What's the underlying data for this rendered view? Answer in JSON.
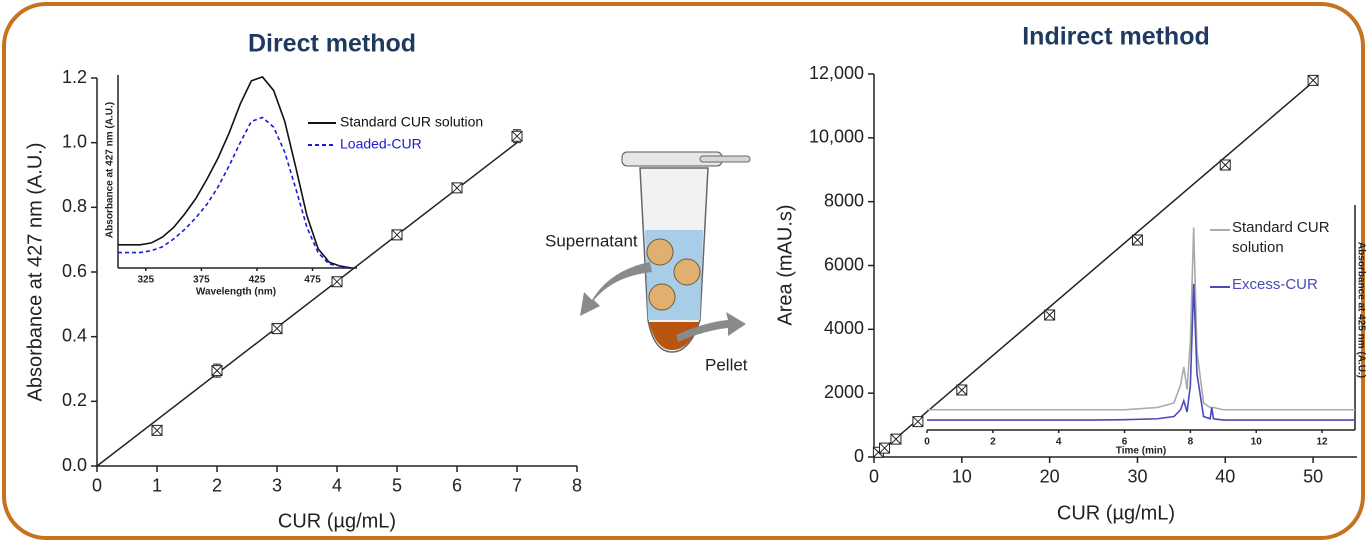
{
  "chart_data": [
    {
      "type": "scatter",
      "title": "Direct method",
      "xlabel": "CUR (µg/mL)",
      "ylabel": "Absorbance at 427 nm (A.U.)",
      "x": [
        1,
        2,
        3,
        4,
        5,
        6,
        7
      ],
      "values": [
        0.11,
        0.295,
        0.425,
        0.57,
        0.715,
        0.86,
        1.02
      ],
      "errors": [
        0.01,
        0.02,
        0.015,
        0.01,
        0.01,
        0.01,
        0.02
      ],
      "fit_x": [
        0,
        7
      ],
      "fit_y": [
        0,
        1.0
      ],
      "color": "#222222",
      "xlim": [
        0,
        8
      ],
      "xticks": [
        0,
        1,
        2,
        3,
        4,
        5,
        6,
        7,
        8
      ],
      "ylim": [
        0,
        1.2
      ],
      "yticks": [
        {
          "value": 0,
          "label": "0.0"
        },
        0.2,
        0.4,
        0.6,
        0.8,
        {
          "value": 1,
          "label": "1.0"
        },
        1.2
      ]
    },
    {
      "type": "line",
      "xlabel": "Wavelength (nm)",
      "ylabel": "Absorbance at 427 nm (A.U.)",
      "x": [
        300,
        310,
        320,
        330,
        340,
        350,
        360,
        370,
        380,
        390,
        400,
        410,
        420,
        430,
        440,
        450,
        460,
        470,
        480,
        490,
        500,
        510
      ],
      "series": [
        {
          "name": "Standard CUR solution",
          "color": "#111111",
          "style": "solid",
          "values": [
            0.12,
            0.12,
            0.12,
            0.13,
            0.16,
            0.21,
            0.28,
            0.36,
            0.46,
            0.57,
            0.7,
            0.85,
            0.97,
            0.99,
            0.92,
            0.76,
            0.52,
            0.27,
            0.1,
            0.03,
            0.01,
            0
          ]
        },
        {
          "name": "Loaded-CUR",
          "color": "#1a1ad6",
          "style": "dashed",
          "values": [
            0.08,
            0.08,
            0.08,
            0.09,
            0.11,
            0.15,
            0.2,
            0.26,
            0.33,
            0.42,
            0.53,
            0.65,
            0.76,
            0.78,
            0.73,
            0.6,
            0.41,
            0.21,
            0.08,
            0.02,
            0.01,
            0
          ]
        }
      ],
      "xlim": [
        300,
        515
      ],
      "xticks": [
        325,
        375,
        425,
        475
      ],
      "ylim": [
        0,
        1
      ]
    },
    {
      "type": "scatter",
      "title": "Indirect method",
      "xlabel": "CUR (µg/mL)",
      "ylabel": "Area (mAU.s)",
      "x": [
        0.5,
        1.2,
        2.5,
        5,
        10,
        20,
        30,
        40,
        50
      ],
      "values": [
        150,
        280,
        560,
        1110,
        2100,
        4450,
        6800,
        9150,
        11800
      ],
      "fit_x": [
        0,
        50
      ],
      "fit_y": [
        0,
        11750
      ],
      "color": "#222222",
      "xlim": [
        0,
        55
      ],
      "xticks": [
        0,
        10,
        20,
        30,
        40,
        50
      ],
      "ylim": [
        0,
        12000
      ],
      "yticks": [
        0,
        2000,
        4000,
        6000,
        8000,
        {
          "value": 10000,
          "label": "10,000"
        },
        {
          "value": 12000,
          "label": "12,000"
        }
      ]
    },
    {
      "type": "line",
      "xlabel": "Time (min)",
      "ylabel": "Absorbance at 425 nm (A.U.)",
      "x": [
        0,
        1,
        2,
        3,
        4,
        5,
        6,
        7,
        7.5,
        7.7,
        7.8,
        7.9,
        8.0,
        8.1,
        8.2,
        8.4,
        8.6,
        8.65,
        8.7,
        9,
        10,
        11,
        12,
        13
      ],
      "series": [
        {
          "name": "Standard CUR solution",
          "color": "#aaaaaa",
          "style": "solid",
          "values": [
            0.09,
            0.09,
            0.09,
            0.09,
            0.09,
            0.09,
            0.09,
            0.1,
            0.12,
            0.2,
            0.28,
            0.18,
            0.4,
            0.9,
            0.35,
            0.12,
            0.1,
            0.1,
            0.1,
            0.09,
            0.09,
            0.09,
            0.09,
            0.09
          ]
        },
        {
          "name": "Excess-CUR",
          "color": "#4a4ab8",
          "style": "solid",
          "values": [
            0.044,
            0.044,
            0.044,
            0.044,
            0.044,
            0.044,
            0.046,
            0.05,
            0.06,
            0.09,
            0.13,
            0.08,
            0.2,
            0.65,
            0.25,
            0.06,
            0.05,
            0.1,
            0.05,
            0.044,
            0.044,
            0.044,
            0.044,
            0.044
          ]
        }
      ],
      "xlim": [
        0,
        13
      ],
      "xticks": [
        0,
        2,
        4,
        6,
        8,
        10,
        12
      ],
      "ylim": [
        0,
        1
      ]
    }
  ],
  "diagram": {
    "labels": [
      "Supernatant",
      "Pellet"
    ]
  }
}
